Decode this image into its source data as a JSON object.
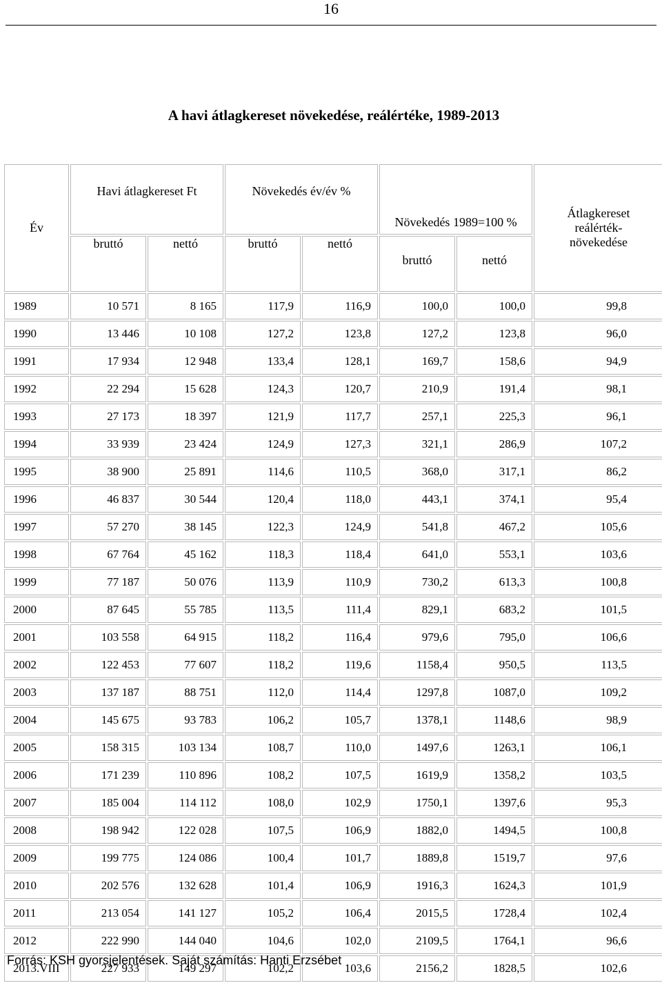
{
  "page_number": "16",
  "title": "A havi átlagkereset növekedése, reálértéke, 1989-2013",
  "table": {
    "headers": {
      "year": "Év",
      "monthly_avg": "Havi átlagkereset Ft",
      "growth_yoy": "Növekedés év/év %",
      "growth_1989": "Növekedés 1989=100 %",
      "real_growth": "Átlagkereset reálérték-növekedése",
      "real_growth_line1": "Átlagkereset",
      "real_growth_line2": "reálérték-",
      "real_growth_line3": "növekedése",
      "brutto": "bruttó",
      "netto": "nettó"
    },
    "rows": [
      {
        "year": "1989",
        "gross": "10 571",
        "net": "8 165",
        "yoy_gross": "117,9",
        "yoy_net": "116,9",
        "idx_gross": "100,0",
        "idx_net": "100,0",
        "real": "99,8"
      },
      {
        "year": "1990",
        "gross": "13 446",
        "net": "10 108",
        "yoy_gross": "127,2",
        "yoy_net": "123,8",
        "idx_gross": "127,2",
        "idx_net": "123,8",
        "real": "96,0"
      },
      {
        "year": "1991",
        "gross": "17 934",
        "net": "12 948",
        "yoy_gross": "133,4",
        "yoy_net": "128,1",
        "idx_gross": "169,7",
        "idx_net": "158,6",
        "real": "94,9"
      },
      {
        "year": "1992",
        "gross": "22 294",
        "net": "15 628",
        "yoy_gross": "124,3",
        "yoy_net": "120,7",
        "idx_gross": "210,9",
        "idx_net": "191,4",
        "real": "98,1"
      },
      {
        "year": "1993",
        "gross": "27 173",
        "net": "18 397",
        "yoy_gross": "121,9",
        "yoy_net": "117,7",
        "idx_gross": "257,1",
        "idx_net": "225,3",
        "real": "96,1"
      },
      {
        "year": "1994",
        "gross": "33 939",
        "net": "23 424",
        "yoy_gross": "124,9",
        "yoy_net": "127,3",
        "idx_gross": "321,1",
        "idx_net": "286,9",
        "real": "107,2"
      },
      {
        "year": "1995",
        "gross": "38 900",
        "net": "25 891",
        "yoy_gross": "114,6",
        "yoy_net": "110,5",
        "idx_gross": "368,0",
        "idx_net": "317,1",
        "real": "86,2"
      },
      {
        "year": "1996",
        "gross": "46 837",
        "net": "30 544",
        "yoy_gross": "120,4",
        "yoy_net": "118,0",
        "idx_gross": "443,1",
        "idx_net": "374,1",
        "real": "95,4"
      },
      {
        "year": "1997",
        "gross": "57 270",
        "net": "38 145",
        "yoy_gross": "122,3",
        "yoy_net": "124,9",
        "idx_gross": "541,8",
        "idx_net": "467,2",
        "real": "105,6"
      },
      {
        "year": "1998",
        "gross": "67 764",
        "net": "45 162",
        "yoy_gross": "118,3",
        "yoy_net": "118,4",
        "idx_gross": "641,0",
        "idx_net": "553,1",
        "real": "103,6"
      },
      {
        "year": "1999",
        "gross": "77 187",
        "net": "50 076",
        "yoy_gross": "113,9",
        "yoy_net": "110,9",
        "idx_gross": "730,2",
        "idx_net": "613,3",
        "real": "100,8"
      },
      {
        "year": "2000",
        "gross": "87 645",
        "net": "55 785",
        "yoy_gross": "113,5",
        "yoy_net": "111,4",
        "idx_gross": "829,1",
        "idx_net": "683,2",
        "real": "101,5"
      },
      {
        "year": "2001",
        "gross": "103 558",
        "net": "64 915",
        "yoy_gross": "118,2",
        "yoy_net": "116,4",
        "idx_gross": "979,6",
        "idx_net": "795,0",
        "real": "106,6"
      },
      {
        "year": "2002",
        "gross": "122 453",
        "net": "77 607",
        "yoy_gross": "118,2",
        "yoy_net": "119,6",
        "idx_gross": "1158,4",
        "idx_net": "950,5",
        "real": "113,5"
      },
      {
        "year": "2003",
        "gross": "137 187",
        "net": "88 751",
        "yoy_gross": "112,0",
        "yoy_net": "114,4",
        "idx_gross": "1297,8",
        "idx_net": "1087,0",
        "real": "109,2"
      },
      {
        "year": "2004",
        "gross": "145 675",
        "net": "93 783",
        "yoy_gross": "106,2",
        "yoy_net": "105,7",
        "idx_gross": "1378,1",
        "idx_net": "1148,6",
        "real": "98,9"
      },
      {
        "year": "2005",
        "gross": "158 315",
        "net": "103 134",
        "yoy_gross": "108,7",
        "yoy_net": "110,0",
        "idx_gross": "1497,6",
        "idx_net": "1263,1",
        "real": "106,1"
      },
      {
        "year": "2006",
        "gross": "171 239",
        "net": "110 896",
        "yoy_gross": "108,2",
        "yoy_net": "107,5",
        "idx_gross": "1619,9",
        "idx_net": "1358,2",
        "real": "103,5"
      },
      {
        "year": "2007",
        "gross": "185 004",
        "net": "114 112",
        "yoy_gross": "108,0",
        "yoy_net": "102,9",
        "idx_gross": "1750,1",
        "idx_net": "1397,6",
        "real": "95,3"
      },
      {
        "year": "2008",
        "gross": "198 942",
        "net": "122 028",
        "yoy_gross": "107,5",
        "yoy_net": "106,9",
        "idx_gross": "1882,0",
        "idx_net": "1494,5",
        "real": "100,8"
      },
      {
        "year": "2009",
        "gross": "199 775",
        "net": "124 086",
        "yoy_gross": "100,4",
        "yoy_net": "101,7",
        "idx_gross": "1889,8",
        "idx_net": "1519,7",
        "real": "97,6"
      },
      {
        "year": "2010",
        "gross": "202 576",
        "net": "132 628",
        "yoy_gross": "101,4",
        "yoy_net": "106,9",
        "idx_gross": "1916,3",
        "idx_net": "1624,3",
        "real": "101,9"
      },
      {
        "year": "2011",
        "gross": "213 054",
        "net": "141 127",
        "yoy_gross": "105,2",
        "yoy_net": "106,4",
        "idx_gross": "2015,5",
        "idx_net": "1728,4",
        "real": "102,4"
      },
      {
        "year": "2012",
        "gross": "222 990",
        "net": "144 040",
        "yoy_gross": "104,6",
        "yoy_net": "102,0",
        "idx_gross": "2109,5",
        "idx_net": "1764,1",
        "real": "96,6"
      },
      {
        "year": "2013.VIII",
        "gross": "227 933",
        "net": "149 297",
        "yoy_gross": "102,2",
        "yoy_net": "103,6",
        "idx_gross": "2156,2",
        "idx_net": "1828,5",
        "real": "102,6"
      }
    ]
  },
  "footer": "Forrás: KSH gyorsjelentések. Saját számítás: Hanti Erzsébet"
}
